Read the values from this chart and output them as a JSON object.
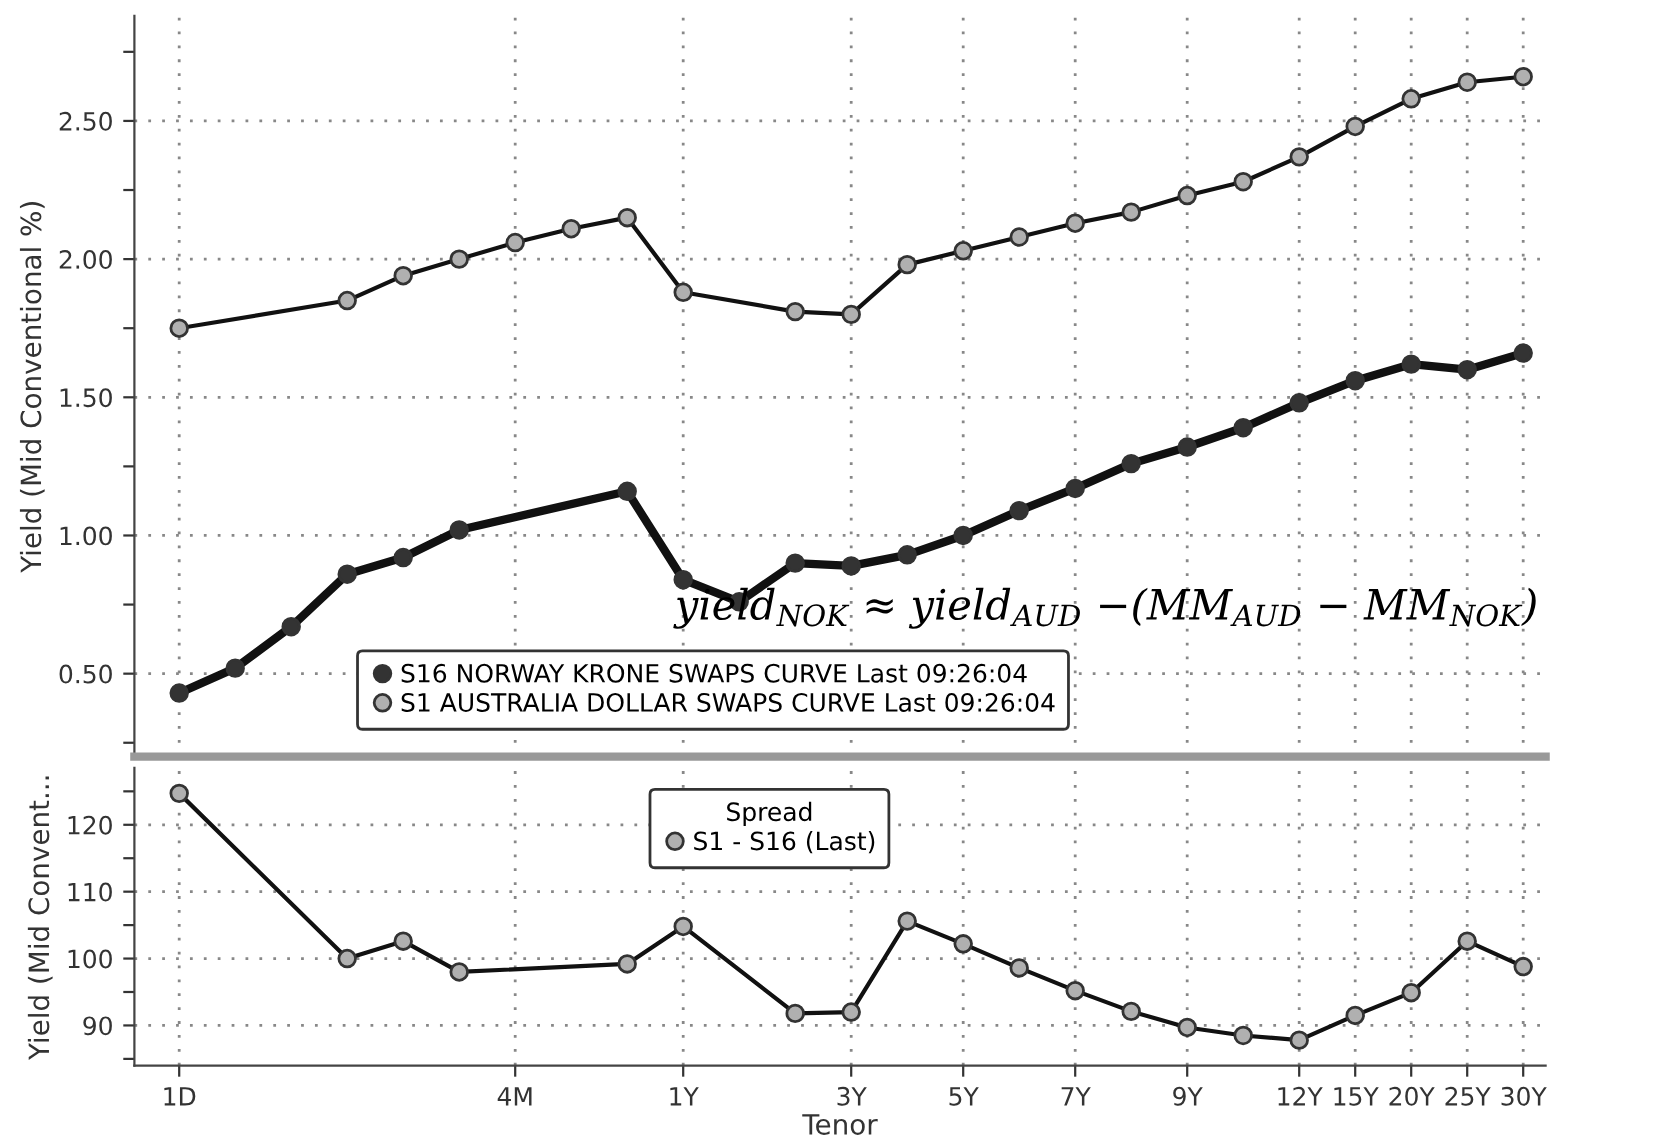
{
  "chart_data": [
    {
      "type": "line",
      "ylabel": "Yield (Mid Conventional %)",
      "categories": [
        null,
        null,
        null,
        null,
        null,
        null,
        null,
        null,
        null,
        null,
        null,
        null,
        null,
        null,
        null,
        null,
        null,
        null,
        null,
        null,
        null,
        null,
        null,
        null,
        null
      ],
      "ylim": [
        0.2,
        2.88
      ],
      "yticks": [
        {
          "value": 0.25,
          "label": null
        },
        {
          "value": 0.5,
          "label": "0.50"
        },
        {
          "value": 0.75,
          "label": null
        },
        {
          "value": 1.0,
          "label": "1.00"
        },
        {
          "value": 1.25,
          "label": null
        },
        {
          "value": 1.5,
          "label": "1.50"
        },
        {
          "value": 1.75,
          "label": null
        },
        {
          "value": 2.0,
          "label": "2.00"
        },
        {
          "value": 2.25,
          "label": null
        },
        {
          "value": 2.5,
          "label": "2.50"
        },
        {
          "value": 2.75,
          "label": null
        }
      ],
      "tick_labels": "y",
      "grid": true,
      "legend": "bottom",
      "marker": "circle",
      "line_style": "solid",
      "annotations": [
        "yield$_{NOK}$ ≈ yield$_{AUD}$ −(MM$_{AUD}$ − MM$_{NOK}$)"
      ],
      "series": [
        {
          "name": "S16 NORWAY KRONE SWAPS CURVE Last 09:26:04",
          "color": "#333333",
          "values": [
            0.43,
            0.52,
            0.67,
            0.86,
            0.92,
            1.02,
            null,
            null,
            1.16,
            0.84,
            0.76,
            0.9,
            0.89,
            0.93,
            1.0,
            1.09,
            1.17,
            1.26,
            1.32,
            1.39,
            1.48,
            1.56,
            1.62,
            1.6,
            1.66
          ]
        },
        {
          "name": "S1 AUSTRALIA DOLLAR SWAPS CURVE Last 09:26:04",
          "color": "#b0b0b0",
          "values": [
            1.75,
            null,
            null,
            1.85,
            1.94,
            2.0,
            2.06,
            2.11,
            2.15,
            1.88,
            null,
            1.81,
            1.8,
            1.98,
            2.03,
            2.08,
            2.13,
            2.17,
            2.23,
            2.28,
            2.37,
            2.48,
            2.58,
            2.64,
            2.66
          ]
        }
      ]
    },
    {
      "type": "line",
      "xlabel": "Tenor",
      "ylabel": "Yield (Mid Convent...",
      "categories": [
        "1D",
        null,
        null,
        null,
        null,
        null,
        "4M",
        null,
        null,
        "1Y",
        null,
        null,
        "3Y",
        null,
        "5Y",
        null,
        "7Y",
        null,
        "9Y",
        null,
        "12Y",
        "15Y",
        "20Y",
        "25Y",
        "30Y"
      ],
      "ylim": [
        84,
        128.5
      ],
      "yticks": [
        {
          "value": 85,
          "label": null
        },
        90,
        {
          "value": 95,
          "label": null
        },
        100,
        {
          "value": 105,
          "label": null
        },
        110,
        {
          "value": 115,
          "label": null
        },
        120,
        {
          "value": 125,
          "label": null
        }
      ],
      "grid": true,
      "legend": "top",
      "legend_title": "Spread",
      "marker": "circle",
      "line_style": "solid",
      "series": [
        {
          "name": "S1 - S16 (Last)",
          "color": "#b0b0b0",
          "values": [
            124.7,
            null,
            null,
            100,
            102.6,
            98,
            null,
            null,
            99.2,
            104.8,
            null,
            91.8,
            92.0,
            105.6,
            102.2,
            98.6,
            95.2,
            92.1,
            89.7,
            88.5,
            87.8,
            91.5,
            94.9,
            102.6,
            98.8
          ]
        }
      ]
    }
  ]
}
